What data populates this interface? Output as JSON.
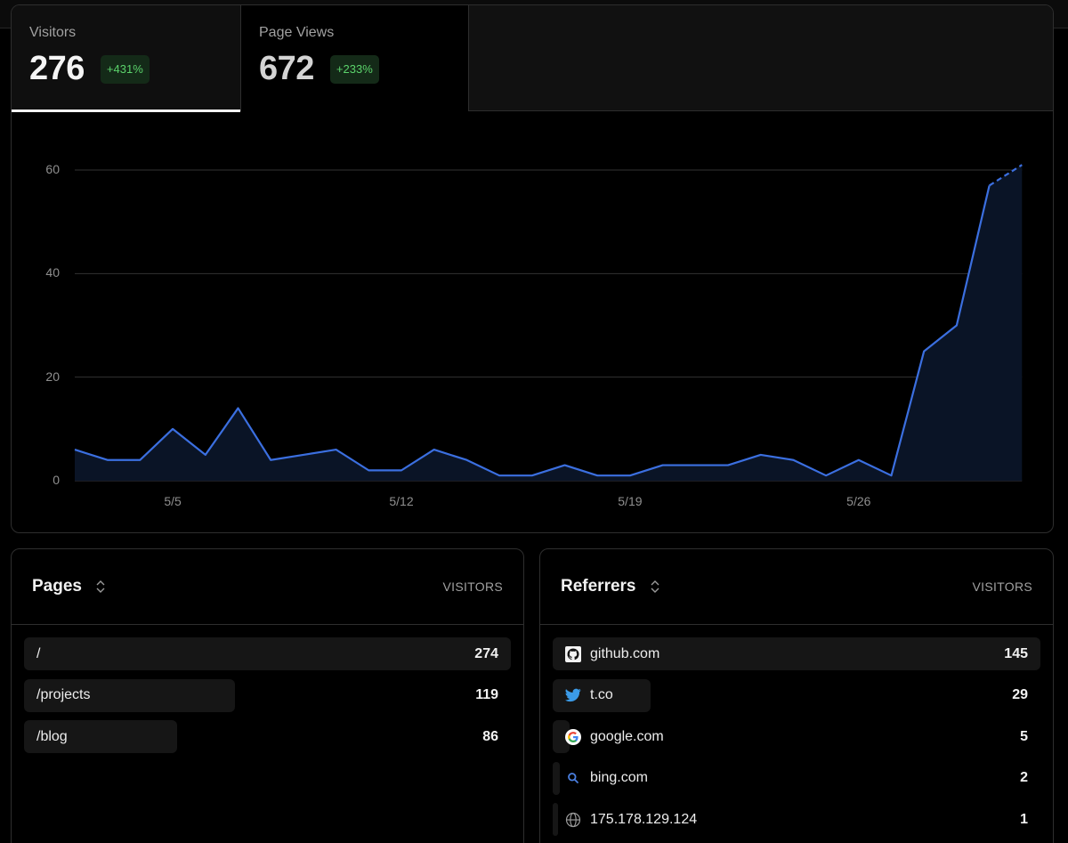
{
  "tabs": [
    {
      "label": "Visitors",
      "value": "276",
      "change": "+431%",
      "active": true
    },
    {
      "label": "Page Views",
      "value": "672",
      "change": "+233%",
      "active": false
    }
  ],
  "colors": {
    "line": "#3b6fe0",
    "fill": "#0a1426",
    "badge_bg": "#142a18",
    "badge_text": "#5bd36b"
  },
  "chart_data": {
    "type": "area",
    "title": "Visitors",
    "xlabel": "",
    "ylabel": "",
    "ylim": [
      0,
      60
    ],
    "yticks": [
      0,
      20,
      40,
      60
    ],
    "xticks": [
      {
        "label": "5/5",
        "index": 3
      },
      {
        "label": "5/12",
        "index": 10
      },
      {
        "label": "5/19",
        "index": 17
      },
      {
        "label": "5/26",
        "index": 24
      }
    ],
    "x": [
      "5/2",
      "5/3",
      "5/4",
      "5/5",
      "5/6",
      "5/7",
      "5/8",
      "5/9",
      "5/10",
      "5/11",
      "5/12",
      "5/13",
      "5/14",
      "5/15",
      "5/16",
      "5/17",
      "5/18",
      "5/19",
      "5/20",
      "5/21",
      "5/22",
      "5/23",
      "5/24",
      "5/25",
      "5/26",
      "5/27",
      "5/28",
      "5/29",
      "5/30",
      "5/31"
    ],
    "values": [
      6,
      4,
      4,
      10,
      5,
      14,
      4,
      5,
      6,
      2,
      2,
      6,
      4,
      1,
      1,
      3,
      1,
      1,
      3,
      3,
      3,
      5,
      4,
      1,
      4,
      1,
      25,
      30,
      57,
      61
    ],
    "dashed_last_segment": true,
    "grid": true
  },
  "pages": {
    "title": "Pages",
    "column": "VISITORS",
    "rows": [
      {
        "label": "/",
        "value": "274",
        "bar_pct": 100
      },
      {
        "label": "/projects",
        "value": "119",
        "bar_pct": 43.4
      },
      {
        "label": "/blog",
        "value": "86",
        "bar_pct": 31.4
      }
    ]
  },
  "referrers": {
    "title": "Referrers",
    "column": "VISITORS",
    "rows": [
      {
        "label": "github.com",
        "value": "145",
        "icon": "github-icon",
        "bar_pct": 100
      },
      {
        "label": "t.co",
        "value": "29",
        "icon": "twitter-icon",
        "bar_pct": 20
      },
      {
        "label": "google.com",
        "value": "5",
        "icon": "google-icon",
        "bar_pct": 3.5
      },
      {
        "label": "bing.com",
        "value": "2",
        "icon": "search-icon",
        "bar_pct": 1.4
      },
      {
        "label": "175.178.129.124",
        "value": "1",
        "icon": "globe-icon",
        "bar_pct": 0.7
      }
    ]
  }
}
